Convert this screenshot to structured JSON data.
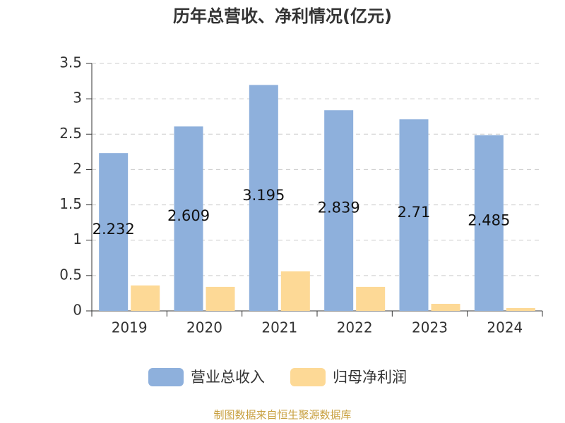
{
  "chart_data": {
    "type": "bar",
    "title": "历年总营收、净利情况(亿元)",
    "categories": [
      "2019",
      "2020",
      "2021",
      "2022",
      "2023",
      "2024"
    ],
    "series": [
      {
        "name": "营业总收入",
        "color": "#8eb0dc",
        "values": [
          2.232,
          2.609,
          3.195,
          2.839,
          2.71,
          2.485
        ],
        "show_labels": true
      },
      {
        "name": "归母净利润",
        "color": "#fdd996",
        "values": [
          0.36,
          0.34,
          0.56,
          0.34,
          0.1,
          0.04
        ],
        "show_labels": false
      }
    ],
    "ylim": [
      0,
      3.5
    ],
    "yticks": [
      0,
      0.5,
      1,
      1.5,
      2,
      2.5,
      3,
      3.5
    ],
    "grid": true,
    "legend": "bottom",
    "source": "制图数据来自恒生聚源数据库"
  }
}
